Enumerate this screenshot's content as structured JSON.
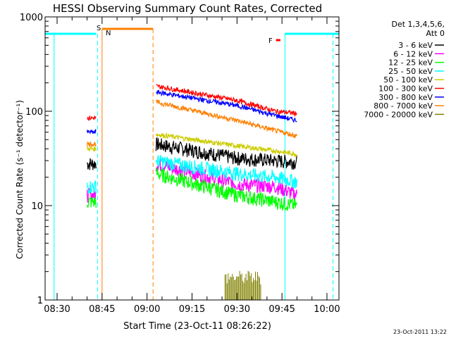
{
  "chart_data": {
    "type": "line",
    "title": "HESSI Observing Summary Count Rates, Corrected",
    "xlabel": "Start Time (23-Oct-11 08:26:22)",
    "ylabel": "Corrected Count Rate (s⁻¹ detector⁻¹)",
    "yscale": "log",
    "ylim": [
      1,
      1000
    ],
    "xlim_minutes": [
      "08:26",
      "10:04"
    ],
    "x_ticks": [
      "08:30",
      "08:45",
      "09:00",
      "09:15",
      "09:30",
      "09:45",
      "10:00"
    ],
    "y_ticks": [
      "1",
      "10",
      "100",
      "1000"
    ],
    "legend_title": [
      "Det 1,3,4,5,6,",
      "Att 0"
    ],
    "legend_position": "top-right",
    "footer_date": "23-Oct-2011 13:22",
    "series": [
      {
        "name": "3 - 6 keV",
        "color": "#000000",
        "points": [
          [
            "08:40",
            28
          ],
          [
            "09:03",
            45
          ],
          [
            "09:30",
            32
          ],
          [
            "09:43",
            30
          ],
          [
            "09:50",
            29
          ]
        ]
      },
      {
        "name": "6 - 12 keV",
        "color": "#ff00ff",
        "points": [
          [
            "08:40",
            13
          ],
          [
            "09:03",
            28
          ],
          [
            "09:30",
            17
          ],
          [
            "09:43",
            16
          ],
          [
            "09:50",
            13
          ]
        ]
      },
      {
        "name": "12 - 25 keV",
        "color": "#00ff00",
        "points": [
          [
            "08:40",
            11
          ],
          [
            "09:03",
            22
          ],
          [
            "09:30",
            13
          ],
          [
            "09:43",
            11
          ],
          [
            "09:50",
            10
          ]
        ]
      },
      {
        "name": "25 - 50 keV",
        "color": "#00ffff",
        "points": [
          [
            "08:40",
            16
          ],
          [
            "09:03",
            30
          ],
          [
            "09:30",
            22
          ],
          [
            "09:43",
            20
          ],
          [
            "09:50",
            18
          ]
        ]
      },
      {
        "name": "50 - 100 keV",
        "color": "#cccc00",
        "points": [
          [
            "08:40",
            40
          ],
          [
            "09:03",
            57
          ],
          [
            "09:30",
            43
          ],
          [
            "09:43",
            38
          ],
          [
            "09:50",
            35
          ]
        ]
      },
      {
        "name": "100 - 300 keV",
        "color": "#ff0000",
        "points": [
          [
            "08:40",
            85
          ],
          [
            "09:03",
            185
          ],
          [
            "09:30",
            130
          ],
          [
            "09:43",
            100
          ],
          [
            "09:50",
            95
          ]
        ]
      },
      {
        "name": "300 - 800 keV",
        "color": "#0000ff",
        "points": [
          [
            "08:40",
            60
          ],
          [
            "09:03",
            160
          ],
          [
            "09:30",
            115
          ],
          [
            "09:43",
            90
          ],
          [
            "09:50",
            80
          ]
        ]
      },
      {
        "name": "800 - 7000 keV",
        "color": "#ff8000",
        "points": [
          [
            "08:40",
            45
          ],
          [
            "09:03",
            125
          ],
          [
            "09:30",
            80
          ],
          [
            "09:43",
            62
          ],
          [
            "09:50",
            55
          ]
        ]
      },
      {
        "name": "7000 - 20000 keV",
        "color": "#808000",
        "points": []
      }
    ],
    "flags": [
      {
        "label": "S",
        "color": "#ff8000",
        "time": "08:43"
      },
      {
        "label": "N",
        "color": "#00cccc",
        "time": "08:44"
      },
      {
        "label": "F",
        "color": "#ff0000",
        "time": "09:44"
      }
    ]
  }
}
